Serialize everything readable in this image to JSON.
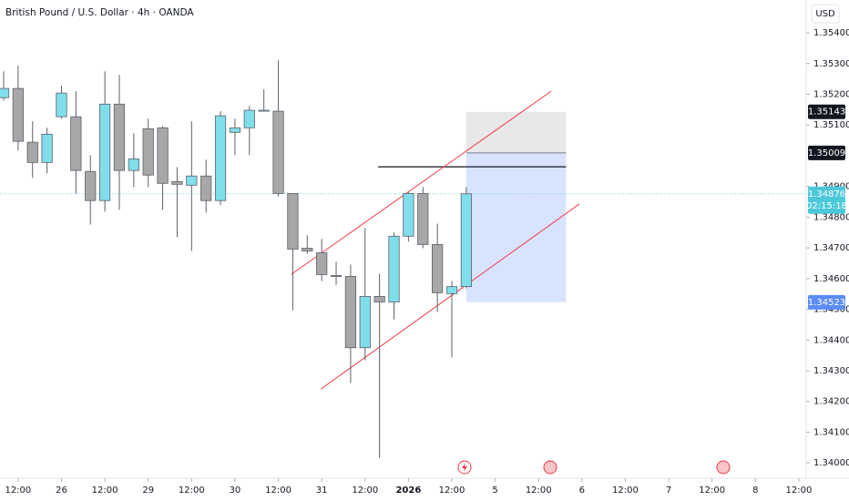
{
  "chart_data": {
    "type": "candlestick",
    "title": "British Pound / U.S. Dollar · 4h · OANDA",
    "currency": "USD",
    "up_color": "#80deea",
    "down_color": "#a7a7a7",
    "wick_color": "#5d606b",
    "x": [
      0,
      1,
      2,
      3,
      4,
      5,
      6,
      7,
      8,
      9,
      10,
      11,
      12,
      13,
      14,
      15,
      16,
      17,
      18,
      19,
      20,
      21,
      22,
      23,
      24,
      25,
      26,
      27,
      28,
      29,
      30,
      31,
      32
    ],
    "open": [
      1.35189,
      1.35219,
      1.35044,
      1.34978,
      1.35127,
      1.35127,
      1.34949,
      1.34854,
      1.35168,
      1.34952,
      1.35088,
      1.35091,
      1.34916,
      1.34904,
      1.34934,
      1.34854,
      1.35076,
      1.35091,
      1.35145,
      1.35145,
      1.34877,
      1.34699,
      1.34684,
      1.3461,
      1.34607,
      1.34375,
      1.34542,
      1.34524,
      1.34738,
      1.34877,
      1.34711,
      1.34551,
      1.34574
    ],
    "high": [
      1.35275,
      1.35293,
      1.35112,
      1.35091,
      1.35228,
      1.3521,
      1.35002,
      1.35275,
      1.35263,
      1.35073,
      1.35121,
      1.35097,
      1.34963,
      1.35112,
      1.34987,
      1.35145,
      1.35121,
      1.35162,
      1.35216,
      1.35311,
      1.34877,
      1.34741,
      1.34729,
      1.34655,
      1.34646,
      1.34764,
      1.34616,
      1.3475,
      1.34883,
      1.34898,
      1.34779,
      1.34592,
      1.34898
    ],
    "low": [
      1.3518,
      1.35017,
      1.34928,
      1.34943,
      1.35121,
      1.34877,
      1.34776,
      1.34818,
      1.34824,
      1.34898,
      1.34898,
      1.34824,
      1.34735,
      1.3469,
      1.34815,
      1.34839,
      1.35002,
      1.35002,
      1.35145,
      1.34868,
      1.34497,
      1.34681,
      1.34592,
      1.3458,
      1.3426,
      1.34334,
      1.34016,
      1.34467,
      1.3472,
      1.34699,
      1.34491,
      1.34343,
      1.34568
    ],
    "close": [
      1.35219,
      1.35047,
      1.34978,
      1.3507,
      1.35204,
      1.34952,
      1.34854,
      1.35168,
      1.34952,
      1.3499,
      1.34937,
      1.3491,
      1.34907,
      1.34934,
      1.34854,
      1.3513,
      1.35091,
      1.35148,
      1.35148,
      1.34877,
      1.34696,
      1.3469,
      1.34613,
      1.34607,
      1.34375,
      1.34542,
      1.34524,
      1.34738,
      1.34877,
      1.34711,
      1.34554,
      1.34574,
      1.34876
    ],
    "xlim": [
      -0.252,
      55.51
    ],
    "xticks": [
      {
        "value": 1,
        "label": "12:00"
      },
      {
        "value": 4,
        "label": "26"
      },
      {
        "value": 7,
        "label": "12:00"
      },
      {
        "value": 10,
        "label": "29"
      },
      {
        "value": 13,
        "label": "12:00"
      },
      {
        "value": 16,
        "label": "30"
      },
      {
        "value": 19,
        "label": "12:00"
      },
      {
        "value": 22,
        "label": "31"
      },
      {
        "value": 25,
        "label": "12:00"
      },
      {
        "value": 28,
        "label": "2026"
      },
      {
        "value": 31,
        "label": "12:00"
      },
      {
        "value": 34,
        "label": "5"
      },
      {
        "value": 37,
        "label": "12:00"
      },
      {
        "value": 40,
        "label": "6"
      },
      {
        "value": 43,
        "label": "12:00"
      },
      {
        "value": 46,
        "label": "7"
      },
      {
        "value": 49,
        "label": "12:00"
      },
      {
        "value": 52,
        "label": "8"
      },
      {
        "value": 55,
        "label": "12:00"
      }
    ],
    "ylim": [
      1.33959,
      1.35507
    ],
    "yticks": [
      {
        "value": 1.354,
        "label": "1.35400"
      },
      {
        "value": 1.353,
        "label": "1.35300"
      },
      {
        "value": 1.352,
        "label": "1.35200"
      },
      {
        "value": 1.351,
        "label": "1.35100"
      },
      {
        "value": 1.349,
        "label": "1.34900"
      },
      {
        "value": 1.348,
        "label": "1.34800"
      },
      {
        "value": 1.347,
        "label": "1.34700"
      },
      {
        "value": 1.346,
        "label": "1.34600"
      },
      {
        "value": 1.345,
        "label": "1.34500"
      },
      {
        "value": 1.344,
        "label": "1.34400"
      },
      {
        "value": 1.343,
        "label": "1.34300"
      },
      {
        "value": 1.342,
        "label": "1.34200"
      },
      {
        "value": 1.341,
        "label": "1.34100"
      },
      {
        "value": 1.34,
        "label": "1.34000"
      }
    ],
    "position": {
      "x": [
        32,
        38.9
      ],
      "stop": 1.35143,
      "entry": 1.35009,
      "target": 1.34523
    },
    "hline": {
      "x": [
        25.9,
        38.9
      ],
      "y": 1.34964
    },
    "trendlines": [
      {
        "x": [
          19.9,
          37.87
        ],
        "y": [
          1.34614,
          1.3521
        ],
        "color": "#f23645"
      },
      {
        "x": [
          21.93,
          39.82
        ],
        "y": [
          1.3424,
          1.34843
        ],
        "color": "#f23645"
      }
    ],
    "price_labels": [
      {
        "value": 1.35143,
        "label": "1.35143",
        "color": "#131722"
      },
      {
        "value": 1.35009,
        "label": "1.35009",
        "color": "#131722"
      },
      {
        "value": 1.34523,
        "label": "1.34523",
        "color": "#5b8cf7"
      }
    ],
    "current": {
      "value": 1.34876,
      "label": "1.34876",
      "countdown": "02:15:18",
      "color": "#4cc9d9"
    }
  }
}
